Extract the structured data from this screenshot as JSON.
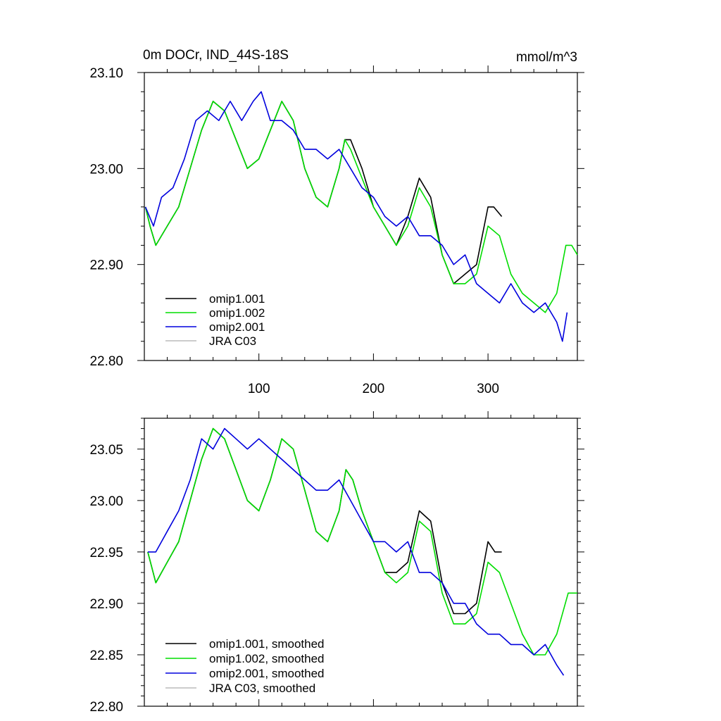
{
  "chart_data": [
    {
      "type": "line",
      "title": "0m DOCr, IND_44S-18S",
      "units": "mmol/m^3",
      "xlim": [
        0,
        378
      ],
      "ylim": [
        22.8,
        23.1
      ],
      "xticks": [
        100,
        200,
        300
      ],
      "yticks": [
        "22.80",
        "22.90",
        "23.00",
        "23.10"
      ],
      "series": [
        {
          "name": "omip1.001",
          "color": "#000000",
          "points": [
            [
              1,
              22.96
            ],
            [
              5,
              22.94
            ],
            [
              10,
              22.92
            ],
            [
              20,
              22.94
            ],
            [
              30,
              22.96
            ],
            [
              40,
              23.0
            ],
            [
              50,
              23.04
            ],
            [
              60,
              23.07
            ],
            [
              70,
              23.06
            ],
            [
              80,
              23.03
            ],
            [
              90,
              23.0
            ],
            [
              100,
              23.01
            ],
            [
              110,
              23.04
            ],
            [
              120,
              23.07
            ],
            [
              130,
              23.05
            ],
            [
              140,
              23.0
            ],
            [
              150,
              22.97
            ],
            [
              160,
              22.96
            ],
            [
              170,
              23.0
            ],
            [
              175,
              23.03
            ],
            [
              180,
              23.03
            ],
            [
              190,
              23.0
            ],
            [
              200,
              22.96
            ],
            [
              210,
              22.94
            ],
            [
              220,
              22.92
            ],
            [
              230,
              22.95
            ],
            [
              240,
              22.99
            ],
            [
              250,
              22.97
            ],
            [
              260,
              22.91
            ],
            [
              270,
              22.88
            ],
            [
              280,
              22.89
            ],
            [
              290,
              22.9
            ],
            [
              300,
              22.96
            ],
            [
              305,
              22.96
            ],
            [
              312,
              22.95
            ]
          ]
        },
        {
          "name": "omip1.002",
          "color": "#00dd00",
          "points": [
            [
              1,
              22.96
            ],
            [
              5,
              22.94
            ],
            [
              10,
              22.92
            ],
            [
              20,
              22.94
            ],
            [
              30,
              22.96
            ],
            [
              40,
              23.0
            ],
            [
              50,
              23.04
            ],
            [
              60,
              23.07
            ],
            [
              70,
              23.06
            ],
            [
              80,
              23.03
            ],
            [
              90,
              23.0
            ],
            [
              100,
              23.01
            ],
            [
              110,
              23.04
            ],
            [
              120,
              23.07
            ],
            [
              130,
              23.05
            ],
            [
              140,
              23.0
            ],
            [
              150,
              22.97
            ],
            [
              160,
              22.96
            ],
            [
              170,
              23.0
            ],
            [
              175,
              23.03
            ],
            [
              180,
              23.02
            ],
            [
              190,
              22.99
            ],
            [
              200,
              22.96
            ],
            [
              210,
              22.94
            ],
            [
              220,
              22.92
            ],
            [
              230,
              22.94
            ],
            [
              240,
              22.98
            ],
            [
              250,
              22.96
            ],
            [
              260,
              22.91
            ],
            [
              270,
              22.88
            ],
            [
              280,
              22.88
            ],
            [
              290,
              22.89
            ],
            [
              300,
              22.94
            ],
            [
              310,
              22.93
            ],
            [
              320,
              22.89
            ],
            [
              330,
              22.87
            ],
            [
              340,
              22.86
            ],
            [
              350,
              22.85
            ],
            [
              360,
              22.87
            ],
            [
              368,
              22.92
            ],
            [
              373,
              22.92
            ],
            [
              378,
              22.91
            ]
          ]
        },
        {
          "name": "omip2.001",
          "color": "#0000dd",
          "points": [
            [
              1,
              22.96
            ],
            [
              8,
              22.94
            ],
            [
              15,
              22.97
            ],
            [
              25,
              22.98
            ],
            [
              35,
              23.01
            ],
            [
              45,
              23.05
            ],
            [
              55,
              23.06
            ],
            [
              65,
              23.05
            ],
            [
              75,
              23.07
            ],
            [
              85,
              23.05
            ],
            [
              95,
              23.07
            ],
            [
              102,
              23.08
            ],
            [
              110,
              23.05
            ],
            [
              120,
              23.05
            ],
            [
              130,
              23.04
            ],
            [
              140,
              23.02
            ],
            [
              150,
              23.02
            ],
            [
              160,
              23.01
            ],
            [
              170,
              23.02
            ],
            [
              180,
              23.0
            ],
            [
              190,
              22.98
            ],
            [
              200,
              22.97
            ],
            [
              210,
              22.95
            ],
            [
              220,
              22.94
            ],
            [
              230,
              22.95
            ],
            [
              240,
              22.93
            ],
            [
              250,
              22.93
            ],
            [
              260,
              22.92
            ],
            [
              270,
              22.9
            ],
            [
              280,
              22.91
            ],
            [
              290,
              22.88
            ],
            [
              300,
              22.87
            ],
            [
              310,
              22.86
            ],
            [
              320,
              22.88
            ],
            [
              330,
              22.86
            ],
            [
              340,
              22.85
            ],
            [
              350,
              22.86
            ],
            [
              360,
              22.84
            ],
            [
              365,
              22.82
            ],
            [
              369,
              22.85
            ]
          ]
        },
        {
          "name": "JRA C03",
          "color": "#bbbbbb",
          "points": []
        }
      ]
    },
    {
      "type": "line",
      "xlim": [
        0,
        378
      ],
      "ylim": [
        22.8,
        23.08
      ],
      "xticks": [
        100,
        200,
        300
      ],
      "yticks": [
        "22.80",
        "22.85",
        "22.90",
        "22.95",
        "23.00",
        "23.05"
      ],
      "series": [
        {
          "name": "omip1.001, smoothed",
          "color": "#000000",
          "points": [
            [
              3,
              22.95
            ],
            [
              10,
              22.92
            ],
            [
              20,
              22.94
            ],
            [
              30,
              22.96
            ],
            [
              40,
              23.0
            ],
            [
              50,
              23.04
            ],
            [
              60,
              23.07
            ],
            [
              70,
              23.06
            ],
            [
              80,
              23.03
            ],
            [
              90,
              23.0
            ],
            [
              100,
              22.99
            ],
            [
              110,
              23.02
            ],
            [
              120,
              23.06
            ],
            [
              130,
              23.05
            ],
            [
              140,
              23.01
            ],
            [
              150,
              22.97
            ],
            [
              160,
              22.96
            ],
            [
              170,
              22.99
            ],
            [
              176,
              23.03
            ],
            [
              182,
              23.02
            ],
            [
              190,
              22.99
            ],
            [
              200,
              22.96
            ],
            [
              210,
              22.93
            ],
            [
              220,
              22.93
            ],
            [
              230,
              22.94
            ],
            [
              240,
              22.99
            ],
            [
              250,
              22.98
            ],
            [
              260,
              22.92
            ],
            [
              270,
              22.89
            ],
            [
              280,
              22.89
            ],
            [
              290,
              22.9
            ],
            [
              300,
              22.96
            ],
            [
              306,
              22.95
            ],
            [
              312,
              22.95
            ]
          ]
        },
        {
          "name": "omip1.002, smoothed",
          "color": "#00dd00",
          "points": [
            [
              3,
              22.95
            ],
            [
              10,
              22.92
            ],
            [
              20,
              22.94
            ],
            [
              30,
              22.96
            ],
            [
              40,
              23.0
            ],
            [
              50,
              23.04
            ],
            [
              60,
              23.07
            ],
            [
              70,
              23.06
            ],
            [
              80,
              23.03
            ],
            [
              90,
              23.0
            ],
            [
              100,
              22.99
            ],
            [
              110,
              23.02
            ],
            [
              120,
              23.06
            ],
            [
              130,
              23.05
            ],
            [
              140,
              23.01
            ],
            [
              150,
              22.97
            ],
            [
              160,
              22.96
            ],
            [
              170,
              22.99
            ],
            [
              176,
              23.03
            ],
            [
              182,
              23.02
            ],
            [
              190,
              22.99
            ],
            [
              200,
              22.96
            ],
            [
              210,
              22.93
            ],
            [
              220,
              22.92
            ],
            [
              230,
              22.93
            ],
            [
              240,
              22.98
            ],
            [
              250,
              22.97
            ],
            [
              260,
              22.91
            ],
            [
              270,
              22.88
            ],
            [
              280,
              22.88
            ],
            [
              290,
              22.89
            ],
            [
              300,
              22.94
            ],
            [
              310,
              22.93
            ],
            [
              320,
              22.9
            ],
            [
              330,
              22.87
            ],
            [
              340,
              22.85
            ],
            [
              350,
              22.85
            ],
            [
              360,
              22.87
            ],
            [
              370,
              22.91
            ],
            [
              378,
              22.91
            ]
          ]
        },
        {
          "name": "omip2.001, smoothed",
          "color": "#0000dd",
          "points": [
            [
              3,
              22.95
            ],
            [
              10,
              22.95
            ],
            [
              20,
              22.97
            ],
            [
              30,
              22.99
            ],
            [
              40,
              23.02
            ],
            [
              50,
              23.06
            ],
            [
              60,
              23.05
            ],
            [
              70,
              23.07
            ],
            [
              80,
              23.06
            ],
            [
              90,
              23.05
            ],
            [
              100,
              23.06
            ],
            [
              110,
              23.05
            ],
            [
              120,
              23.04
            ],
            [
              130,
              23.03
            ],
            [
              140,
              23.02
            ],
            [
              150,
              23.01
            ],
            [
              160,
              23.01
            ],
            [
              170,
              23.02
            ],
            [
              180,
              23.0
            ],
            [
              190,
              22.98
            ],
            [
              200,
              22.96
            ],
            [
              210,
              22.96
            ],
            [
              220,
              22.95
            ],
            [
              230,
              22.96
            ],
            [
              240,
              22.93
            ],
            [
              250,
              22.93
            ],
            [
              260,
              22.92
            ],
            [
              270,
              22.9
            ],
            [
              280,
              22.9
            ],
            [
              290,
              22.88
            ],
            [
              300,
              22.87
            ],
            [
              310,
              22.87
            ],
            [
              320,
              22.86
            ],
            [
              330,
              22.86
            ],
            [
              340,
              22.85
            ],
            [
              350,
              22.86
            ],
            [
              360,
              22.84
            ],
            [
              366,
              22.83
            ]
          ]
        },
        {
          "name": "JRA C03, smoothed",
          "color": "#bbbbbb",
          "points": []
        }
      ]
    }
  ]
}
